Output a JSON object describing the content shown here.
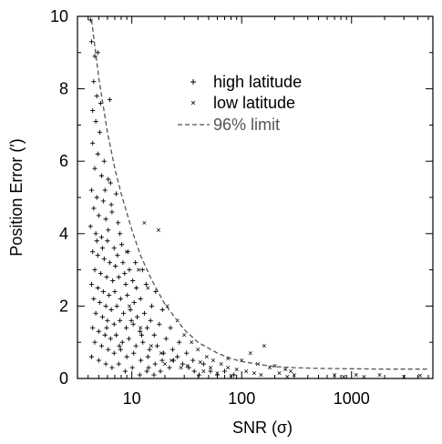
{
  "chart_data": {
    "type": "scatter",
    "title": "",
    "xlabel": "SNR (σ)",
    "ylabel": "Position Error (′)",
    "xscale": "log",
    "xlim": [
      3.2,
      5500
    ],
    "ylim": [
      0,
      10
    ],
    "x_ticks": [
      10,
      100,
      1000
    ],
    "x_tick_labels": [
      "10",
      "100",
      "1000"
    ],
    "y_ticks": [
      0,
      2,
      4,
      6,
      8,
      10
    ],
    "y_tick_labels": [
      "0",
      "2",
      "4",
      "6",
      "8",
      "10"
    ],
    "legend": {
      "position": "top-center",
      "entries": [
        "high latitude",
        "low latitude",
        "96% limit"
      ]
    },
    "grid": false,
    "series": [
      {
        "name": "high latitude",
        "marker": "plus",
        "points": [
          [
            4.2,
            9.9
          ],
          [
            4.3,
            9.3
          ],
          [
            4.6,
            8.9
          ],
          [
            4.9,
            9.0
          ],
          [
            4.5,
            8.2
          ],
          [
            4.8,
            7.8
          ],
          [
            5.2,
            7.6
          ],
          [
            4.4,
            7.4
          ],
          [
            4.7,
            7.1
          ],
          [
            5.1,
            6.8
          ],
          [
            6.3,
            7.7
          ],
          [
            4.4,
            6.5
          ],
          [
            4.9,
            6.2
          ],
          [
            5.6,
            6.0
          ],
          [
            4.6,
            5.8
          ],
          [
            5.3,
            5.6
          ],
          [
            6.1,
            5.5
          ],
          [
            4.3,
            5.2
          ],
          [
            4.8,
            5.0
          ],
          [
            5.5,
            4.9
          ],
          [
            6.4,
            5.4
          ],
          [
            7.2,
            5.1
          ],
          [
            4.5,
            4.7
          ],
          [
            5.0,
            4.5
          ],
          [
            5.8,
            4.4
          ],
          [
            6.6,
            4.6
          ],
          [
            7.5,
            4.3
          ],
          [
            4.2,
            4.2
          ],
          [
            4.7,
            4.0
          ],
          [
            5.3,
            3.9
          ],
          [
            6.0,
            3.8
          ],
          [
            6.9,
            3.6
          ],
          [
            8.1,
            3.7
          ],
          [
            4.4,
            3.5
          ],
          [
            4.9,
            3.4
          ],
          [
            5.6,
            3.3
          ],
          [
            6.3,
            3.2
          ],
          [
            7.1,
            3.1
          ],
          [
            8.3,
            3.2
          ],
          [
            9.5,
            3.0
          ],
          [
            4.6,
            3.0
          ],
          [
            5.2,
            2.9
          ],
          [
            5.9,
            2.8
          ],
          [
            6.7,
            2.7
          ],
          [
            7.6,
            2.8
          ],
          [
            8.8,
            2.6
          ],
          [
            10.2,
            2.7
          ],
          [
            4.3,
            2.6
          ],
          [
            4.9,
            2.5
          ],
          [
            5.5,
            2.4
          ],
          [
            6.2,
            2.3
          ],
          [
            7.0,
            2.4
          ],
          [
            7.9,
            2.2
          ],
          [
            9.1,
            2.3
          ],
          [
            10.5,
            2.1
          ],
          [
            12.0,
            2.2
          ],
          [
            4.5,
            2.2
          ],
          [
            5.1,
            2.1
          ],
          [
            5.8,
            2.0
          ],
          [
            6.5,
            1.9
          ],
          [
            7.3,
            2.0
          ],
          [
            8.4,
            1.8
          ],
          [
            9.7,
            1.9
          ],
          [
            11.2,
            1.7
          ],
          [
            13.0,
            1.8
          ],
          [
            14.8,
            1.6
          ],
          [
            4.7,
            1.8
          ],
          [
            5.4,
            1.7
          ],
          [
            6.0,
            1.6
          ],
          [
            6.9,
            1.5
          ],
          [
            7.8,
            1.6
          ],
          [
            8.9,
            1.4
          ],
          [
            10.3,
            1.5
          ],
          [
            11.9,
            1.3
          ],
          [
            13.8,
            1.4
          ],
          [
            16.0,
            1.2
          ],
          [
            4.4,
            1.4
          ],
          [
            5.0,
            1.3
          ],
          [
            5.7,
            1.2
          ],
          [
            6.4,
            1.1
          ],
          [
            7.2,
            1.2
          ],
          [
            8.2,
            1.0
          ],
          [
            9.4,
            1.1
          ],
          [
            10.9,
            0.9
          ],
          [
            12.6,
            1.0
          ],
          [
            14.5,
            0.8
          ],
          [
            17.0,
            0.9
          ],
          [
            19.5,
            0.7
          ],
          [
            4.6,
            1.0
          ],
          [
            5.3,
            0.9
          ],
          [
            6.1,
            0.8
          ],
          [
            6.9,
            0.7
          ],
          [
            7.9,
            0.8
          ],
          [
            9.0,
            0.6
          ],
          [
            10.4,
            0.7
          ],
          [
            12.1,
            0.5
          ],
          [
            14.0,
            0.6
          ],
          [
            16.3,
            0.4
          ],
          [
            18.9,
            0.5
          ],
          [
            22.0,
            0.3
          ],
          [
            4.3,
            0.6
          ],
          [
            5.0,
            0.5
          ],
          [
            5.8,
            0.4
          ],
          [
            6.6,
            0.3
          ],
          [
            7.6,
            0.4
          ],
          [
            8.7,
            0.2
          ],
          [
            10.1,
            0.3
          ],
          [
            11.8,
            0.1
          ],
          [
            13.7,
            0.2
          ],
          [
            15.9,
            0.1
          ],
          [
            4.8,
            3.8
          ],
          [
            5.4,
            3.6
          ],
          [
            6.1,
            4.1
          ],
          [
            7.4,
            3.4
          ],
          [
            8.6,
            2.9
          ],
          [
            11.0,
            2.5
          ],
          [
            12.5,
            3.0
          ],
          [
            15.2,
            2.0
          ],
          [
            17.8,
            1.5
          ],
          [
            20.5,
            1.1
          ],
          [
            23.5,
            0.8
          ],
          [
            26.0,
            0.6
          ],
          [
            29.0,
            0.4
          ],
          [
            33.0,
            0.3
          ],
          [
            37.0,
            0.2
          ],
          [
            41.0,
            0.1
          ],
          [
            5.7,
            5.2
          ],
          [
            6.5,
            4.8
          ],
          [
            7.8,
            4.0
          ],
          [
            9.2,
            3.5
          ],
          [
            10.8,
            3.2
          ],
          [
            13.5,
            2.6
          ],
          [
            16.5,
            2.4
          ],
          [
            19.0,
            1.9
          ],
          [
            22.5,
            1.4
          ],
          [
            27.0,
            1.0
          ],
          [
            31.5,
            0.7
          ],
          [
            36.0,
            0.5
          ],
          [
            45.0,
            0.4
          ],
          [
            52.0,
            0.2
          ],
          [
            60.0,
            0.1
          ],
          [
            70.0,
            0.2
          ],
          [
            85.0,
            0.1
          ],
          [
            5.9,
            1.4
          ],
          [
            7.7,
            0.9
          ],
          [
            9.9,
            1.6
          ],
          [
            12.3,
            1.2
          ],
          [
            14.2,
            0.3
          ],
          [
            18.2,
            0.2
          ],
          [
            24.0,
            0.5
          ]
        ]
      },
      {
        "name": "low latitude",
        "marker": "x",
        "points": [
          [
            13.0,
            4.3
          ],
          [
            17.5,
            4.1
          ],
          [
            9.0,
            3.5
          ],
          [
            11.5,
            3.0
          ],
          [
            14.0,
            2.5
          ],
          [
            21.0,
            2.0
          ],
          [
            26.0,
            1.6
          ],
          [
            30.0,
            1.2
          ],
          [
            35.0,
            1.0
          ],
          [
            40.0,
            0.8
          ],
          [
            48.0,
            0.6
          ],
          [
            55.0,
            0.5
          ],
          [
            65.0,
            0.4
          ],
          [
            75.0,
            0.3
          ],
          [
            90.0,
            0.25
          ],
          [
            110.0,
            0.2
          ],
          [
            130.0,
            0.15
          ],
          [
            150.0,
            0.1
          ],
          [
            120.0,
            0.7
          ],
          [
            160.0,
            0.9
          ],
          [
            75.0,
            0.55
          ],
          [
            200.0,
            0.35
          ],
          [
            250.0,
            0.25
          ],
          [
            280.0,
            0.2
          ],
          [
            300.0,
            0.1
          ],
          [
            20.0,
            0.4
          ],
          [
            28.0,
            0.3
          ],
          [
            45.0,
            0.2
          ],
          [
            60.0,
            0.15
          ],
          [
            80.0,
            0.08
          ],
          [
            15.0,
            0.9
          ],
          [
            18.5,
            0.7
          ],
          [
            23.0,
            0.5
          ],
          [
            32.0,
            0.35
          ],
          [
            42.0,
            0.45
          ],
          [
            52.0,
            0.3
          ],
          [
            100.0,
            0.5
          ],
          [
            140.0,
            0.4
          ],
          [
            180.0,
            0.3
          ],
          [
            220.0,
            0.15
          ],
          [
            260.0,
            0.05
          ],
          [
            1100.0,
            0.1
          ],
          [
            1300.0,
            0.05
          ],
          [
            1800.0,
            0.1
          ],
          [
            3000.0,
            0.05
          ],
          [
            4200.0,
            0.08
          ],
          [
            850.0,
            0.05
          ],
          [
            700.0,
            0.1
          ],
          [
            9.5,
            2.0
          ],
          [
            12.0,
            1.4
          ]
        ]
      }
    ],
    "limit_curve": {
      "name": "96% limit",
      "style": "dashed",
      "points": [
        [
          4.3,
          9.9
        ],
        [
          5.0,
          8.3
        ],
        [
          6.0,
          6.8
        ],
        [
          7.0,
          5.8
        ],
        [
          8.0,
          5.1
        ],
        [
          10.0,
          4.1
        ],
        [
          12.0,
          3.4
        ],
        [
          15.0,
          2.75
        ],
        [
          20.0,
          2.05
        ],
        [
          30.0,
          1.35
        ],
        [
          40.0,
          1.0
        ],
        [
          60.0,
          0.7
        ],
        [
          80.0,
          0.55
        ],
        [
          100.0,
          0.47
        ],
        [
          150.0,
          0.38
        ],
        [
          200.0,
          0.33
        ],
        [
          300.0,
          0.3
        ],
        [
          500.0,
          0.28
        ],
        [
          1000.0,
          0.27
        ],
        [
          2000.0,
          0.26
        ],
        [
          5000.0,
          0.26
        ]
      ]
    }
  }
}
